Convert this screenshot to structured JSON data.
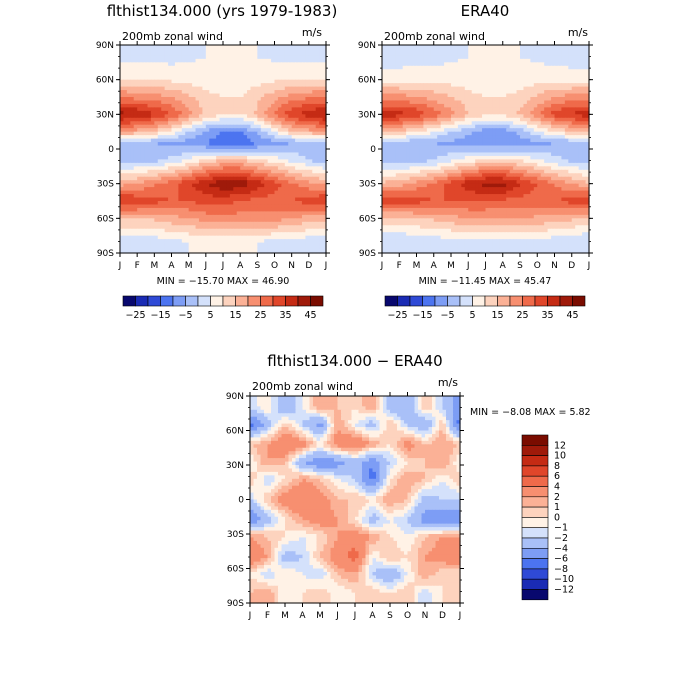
{
  "chart_data": [
    {
      "type": "heatmap",
      "title": "flthist134.000 (yrs 1979-1983)",
      "subtitle": "200mb zonal wind",
      "units": "m/s",
      "x_ticks": [
        "J",
        "F",
        "M",
        "A",
        "M",
        "J",
        "J",
        "A",
        "S",
        "O",
        "N",
        "D",
        "J"
      ],
      "y_ticks": [
        "90N",
        "60N",
        "30N",
        "0",
        "30S",
        "60S",
        "90S"
      ],
      "ylim": [
        -90,
        90
      ],
      "stats_text": "MIN = −15.70  MAX =   46.90",
      "colorbar_levels": [
        -25,
        -20,
        -15,
        -10,
        -5,
        0,
        5,
        10,
        15,
        20,
        25,
        30,
        35,
        40,
        45
      ],
      "colorbar_labels": [
        "−25",
        "−15",
        "−5",
        "5",
        "15",
        "25",
        "35",
        "45"
      ],
      "colors": [
        "#08086e",
        "#1a2bb4",
        "#2f4ad6",
        "#4c74f0",
        "#7d9df5",
        "#a9c0f8",
        "#d4e1fb",
        "#fff2e6",
        "#fdd3be",
        "#fbb196",
        "#f78f70",
        "#ef6a4a",
        "#e0462a",
        "#c52b14",
        "#9f1a0a",
        "#7a0c00"
      ],
      "grid": false,
      "series": [
        {
          "lat": 80,
          "values": [
            3,
            3,
            3,
            3,
            4,
            5,
            6,
            6,
            5,
            4,
            3,
            3,
            3
          ]
        },
        {
          "lat": 60,
          "values": [
            10,
            10,
            10,
            9,
            8,
            7,
            6,
            6,
            8,
            9,
            10,
            10,
            10
          ]
        },
        {
          "lat": 45,
          "values": [
            25,
            23,
            22,
            20,
            16,
            12,
            10,
            10,
            14,
            18,
            22,
            24,
            25
          ]
        },
        {
          "lat": 30,
          "values": [
            42,
            40,
            36,
            30,
            22,
            14,
            10,
            10,
            16,
            26,
            34,
            38,
            42
          ]
        },
        {
          "lat": 15,
          "values": [
            20,
            18,
            14,
            8,
            0,
            -6,
            -10,
            -10,
            -4,
            6,
            14,
            18,
            20
          ]
        },
        {
          "lat": 5,
          "values": [
            -4,
            -4,
            -5,
            -6,
            -8,
            -10,
            -14,
            -14,
            -10,
            -7,
            -5,
            -4,
            -4
          ]
        },
        {
          "lat": -10,
          "values": [
            -2,
            -2,
            -1,
            2,
            6,
            12,
            16,
            16,
            12,
            8,
            4,
            0,
            -2
          ]
        },
        {
          "lat": -30,
          "values": [
            18,
            20,
            24,
            28,
            34,
            40,
            44,
            44,
            38,
            32,
            26,
            22,
            18
          ]
        },
        {
          "lat": -45,
          "values": [
            36,
            34,
            32,
            30,
            30,
            32,
            32,
            30,
            28,
            28,
            30,
            32,
            36
          ]
        },
        {
          "lat": -60,
          "values": [
            16,
            16,
            16,
            18,
            20,
            22,
            24,
            22,
            22,
            22,
            20,
            18,
            16
          ]
        },
        {
          "lat": -80,
          "values": [
            0,
            0,
            2,
            4,
            5,
            6,
            6,
            5,
            5,
            4,
            3,
            2,
            0
          ]
        }
      ]
    },
    {
      "type": "heatmap",
      "title": "ERA40",
      "subtitle": "200mb zonal wind",
      "units": "m/s",
      "x_ticks": [
        "J",
        "F",
        "M",
        "A",
        "M",
        "J",
        "J",
        "A",
        "S",
        "O",
        "N",
        "D",
        "J"
      ],
      "y_ticks": [
        "90N",
        "60N",
        "30N",
        "0",
        "30S",
        "60S",
        "90S"
      ],
      "ylim": [
        -90,
        90
      ],
      "stats_text": "MIN = −11.45  MAX =   45.47",
      "colorbar_levels": [
        -25,
        -20,
        -15,
        -10,
        -5,
        0,
        5,
        10,
        15,
        20,
        25,
        30,
        35,
        40,
        45
      ],
      "colorbar_labels": [
        "−25",
        "−15",
        "−5",
        "5",
        "15",
        "25",
        "35",
        "45"
      ],
      "colors": [
        "#08086e",
        "#1a2bb4",
        "#2f4ad6",
        "#4c74f0",
        "#7d9df5",
        "#a9c0f8",
        "#d4e1fb",
        "#fff2e6",
        "#fdd3be",
        "#fbb196",
        "#f78f70",
        "#ef6a4a",
        "#e0462a",
        "#c52b14",
        "#9f1a0a",
        "#7a0c00"
      ],
      "grid": false,
      "series": [
        {
          "lat": 80,
          "values": [
            2,
            2,
            3,
            3,
            4,
            5,
            5,
            5,
            5,
            4,
            3,
            2,
            2
          ]
        },
        {
          "lat": 60,
          "values": [
            8,
            8,
            8,
            8,
            8,
            7,
            6,
            6,
            7,
            8,
            8,
            8,
            8
          ]
        },
        {
          "lat": 45,
          "values": [
            22,
            22,
            20,
            18,
            15,
            12,
            10,
            10,
            12,
            16,
            20,
            22,
            22
          ]
        },
        {
          "lat": 30,
          "values": [
            38,
            37,
            34,
            28,
            22,
            15,
            11,
            11,
            16,
            24,
            32,
            36,
            38
          ]
        },
        {
          "lat": 15,
          "values": [
            16,
            14,
            10,
            6,
            0,
            -4,
            -8,
            -8,
            -3,
            4,
            10,
            14,
            16
          ]
        },
        {
          "lat": 5,
          "values": [
            -4,
            -4,
            -4,
            -5,
            -6,
            -8,
            -10,
            -10,
            -8,
            -6,
            -5,
            -4,
            -4
          ]
        },
        {
          "lat": -10,
          "values": [
            -3,
            -3,
            -2,
            0,
            4,
            8,
            12,
            12,
            10,
            6,
            2,
            -1,
            -3
          ]
        },
        {
          "lat": -30,
          "values": [
            16,
            18,
            22,
            26,
            32,
            38,
            42,
            42,
            36,
            30,
            24,
            20,
            16
          ]
        },
        {
          "lat": -45,
          "values": [
            34,
            33,
            32,
            30,
            30,
            30,
            30,
            29,
            28,
            28,
            30,
            32,
            34
          ]
        },
        {
          "lat": -60,
          "values": [
            14,
            14,
            15,
            16,
            18,
            20,
            20,
            20,
            20,
            19,
            18,
            16,
            14
          ]
        },
        {
          "lat": -80,
          "values": [
            0,
            0,
            1,
            2,
            3,
            4,
            4,
            4,
            4,
            3,
            2,
            1,
            0
          ]
        }
      ]
    },
    {
      "type": "heatmap",
      "title": "flthist134.000 − ERA40",
      "subtitle": "200mb zonal wind",
      "units": "m/s",
      "x_ticks": [
        "J",
        "F",
        "M",
        "A",
        "M",
        "J",
        "J",
        "A",
        "S",
        "O",
        "N",
        "D",
        "J"
      ],
      "y_ticks": [
        "90N",
        "60N",
        "30N",
        "0",
        "30S",
        "60S",
        "90S"
      ],
      "ylim": [
        -90,
        90
      ],
      "stats_text": "MIN =  −8.08  MAX =    5.82",
      "colorbar_levels": [
        -12,
        -10,
        -8,
        -6,
        -4,
        -2,
        -1,
        0,
        1,
        2,
        4,
        6,
        8,
        10,
        12
      ],
      "colorbar_labels": [
        "12",
        "10",
        "8",
        "6",
        "4",
        "2",
        "1",
        "0",
        "−1",
        "−2",
        "−4",
        "−6",
        "−8",
        "−10",
        "−12"
      ],
      "colors": [
        "#08086e",
        "#1a2bb4",
        "#2f4ad6",
        "#4c74f0",
        "#7d9df5",
        "#a9c0f8",
        "#d4e1fb",
        "#fff2e6",
        "#fdd3be",
        "#fbb196",
        "#f78f70",
        "#ef6a4a",
        "#e0462a",
        "#c52b14",
        "#9f1a0a",
        "#7a0c00"
      ],
      "grid": false,
      "series": [
        {
          "lat": 80,
          "values": [
            -2,
            0,
            -4,
            -1,
            2,
            1,
            0,
            2,
            -3,
            -4,
            1,
            -2,
            -6
          ]
        },
        {
          "lat": 65,
          "values": [
            -7,
            -3,
            1,
            -2,
            -5,
            2,
            -1,
            -3,
            1,
            -2,
            -4,
            1,
            -7
          ]
        },
        {
          "lat": 48,
          "values": [
            1,
            2,
            4,
            3,
            0,
            3,
            4,
            2,
            0,
            3,
            1,
            2,
            1
          ]
        },
        {
          "lat": 32,
          "values": [
            -1,
            2,
            1,
            -4,
            -6,
            -5,
            -3,
            -6,
            -2,
            0,
            1,
            2,
            -1
          ]
        },
        {
          "lat": 18,
          "values": [
            1,
            -2,
            0,
            2,
            1,
            -1,
            -2,
            -7,
            0,
            2,
            1,
            -1,
            1
          ]
        },
        {
          "lat": 0,
          "values": [
            -2,
            1,
            3,
            4,
            3,
            1,
            1,
            0,
            2,
            1,
            -3,
            -2,
            -2
          ]
        },
        {
          "lat": -18,
          "values": [
            -6,
            -3,
            0,
            2,
            3,
            2,
            0,
            -3,
            -1,
            -2,
            -5,
            -6,
            -6
          ]
        },
        {
          "lat": -32,
          "values": [
            2,
            1,
            0,
            -1,
            0,
            2,
            3,
            2,
            0,
            -1,
            1,
            2,
            2
          ]
        },
        {
          "lat": -50,
          "values": [
            4,
            2,
            -3,
            -2,
            1,
            3,
            5,
            -1,
            1,
            0,
            2,
            3,
            4
          ]
        },
        {
          "lat": -65,
          "values": [
            0,
            -2,
            0,
            -1,
            -2,
            1,
            2,
            -2,
            -4,
            -1,
            2,
            0,
            0
          ]
        },
        {
          "lat": -82,
          "values": [
            1,
            2,
            -1,
            0,
            1,
            -1,
            0,
            1,
            0,
            1,
            -2,
            0,
            1
          ]
        }
      ]
    }
  ]
}
